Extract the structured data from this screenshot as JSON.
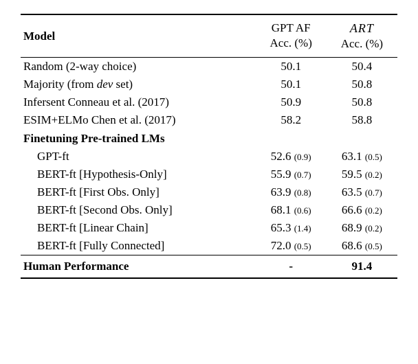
{
  "header": {
    "model_label": "Model",
    "col1_line1": "GPT AF",
    "col1_line2": "Acc. (%)",
    "col2_line1": "ART",
    "col2_line2": "Acc. (%)"
  },
  "rows": [
    {
      "label": "Random (2-way choice)",
      "v1": "50.1",
      "v2": "50.4",
      "indent": false
    },
    {
      "label": "Majority (from ",
      "label_italic": "dev",
      "label_suffix": " set)",
      "v1": "50.1",
      "v2": "50.8",
      "indent": false
    },
    {
      "label": "Infersent Conneau et al. (2017)",
      "v1": "50.9",
      "v2": "50.8",
      "indent": false
    },
    {
      "label": "ESIM+ELMo Chen et al. (2017)",
      "v1": "58.2",
      "v2": "58.8",
      "indent": false
    }
  ],
  "section_label": "Finetuning Pre-trained LMs",
  "ft_rows": [
    {
      "label": "GPT-ft",
      "v1": "52.6",
      "s1": "(0.9)",
      "v2": "63.1",
      "s2": "(0.5)"
    },
    {
      "label": "BERT-ft [Hypothesis-Only]",
      "v1": "55.9",
      "s1": "(0.7)",
      "v2": "59.5",
      "s2": "(0.2)"
    },
    {
      "label": "BERT-ft [First Obs. Only]",
      "v1": "63.9",
      "s1": "(0.8)",
      "v2": "63.5",
      "s2": "(0.7)"
    },
    {
      "label": "BERT-ft [Second Obs. Only]",
      "v1": "68.1",
      "s1": "(0.6)",
      "v2": "66.6",
      "s2": "(0.2)"
    },
    {
      "label": "BERT-ft [Linear Chain]",
      "v1": "65.3",
      "s1": "(1.4)",
      "v2": "68.9",
      "s2": "(0.2)"
    },
    {
      "label": "BERT-ft [Fully Connected]",
      "v1": "72.0",
      "s1": "(0.5)",
      "v2": "68.6",
      "s2": "(0.5)"
    }
  ],
  "human": {
    "label": "Human Performance",
    "v1": "-",
    "v2": "91.4"
  }
}
